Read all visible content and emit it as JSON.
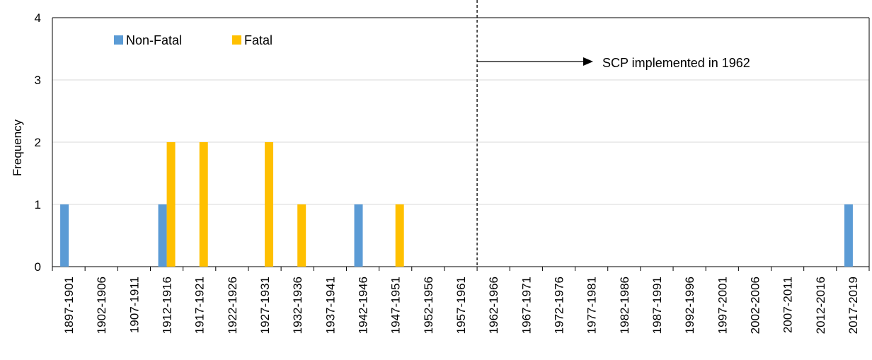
{
  "chart_data": {
    "type": "bar",
    "title": "",
    "xlabel": "",
    "ylabel": "Frequency",
    "ylim": [
      0,
      4
    ],
    "yticks": [
      "0",
      "1",
      "2",
      "3",
      "4"
    ],
    "grid": true,
    "legend_position": "top-left",
    "categories": [
      "1897-1901",
      "1902-1906",
      "1907-1911",
      "1912-1916",
      "1917-1921",
      "1922-1926",
      "1927-1931",
      "1932-1936",
      "1937-1941",
      "1942-1946",
      "1947-1951",
      "1952-1956",
      "1957-1961",
      "1962-1966",
      "1967-1971",
      "1972-1976",
      "1977-1981",
      "1982-1986",
      "1987-1991",
      "1992-1996",
      "1997-2001",
      "2002-2006",
      "2007-2011",
      "2012-2016",
      "2017-2019"
    ],
    "series": [
      {
        "name": "Non-Fatal",
        "color": "#5b9bd5",
        "values": [
          1,
          0,
          0,
          1,
          0,
          0,
          0,
          0,
          0,
          1,
          0,
          0,
          0,
          0,
          0,
          0,
          0,
          0,
          0,
          0,
          0,
          0,
          0,
          0,
          1
        ]
      },
      {
        "name": "Fatal",
        "color": "#ffc000",
        "values": [
          0,
          0,
          0,
          2,
          2,
          0,
          2,
          1,
          0,
          0,
          1,
          0,
          0,
          0,
          0,
          0,
          0,
          0,
          0,
          0,
          0,
          0,
          0,
          0,
          0
        ]
      }
    ],
    "annotation": {
      "text": "SCP implemented in 1962",
      "divider_after_category": "1957-1961"
    }
  }
}
